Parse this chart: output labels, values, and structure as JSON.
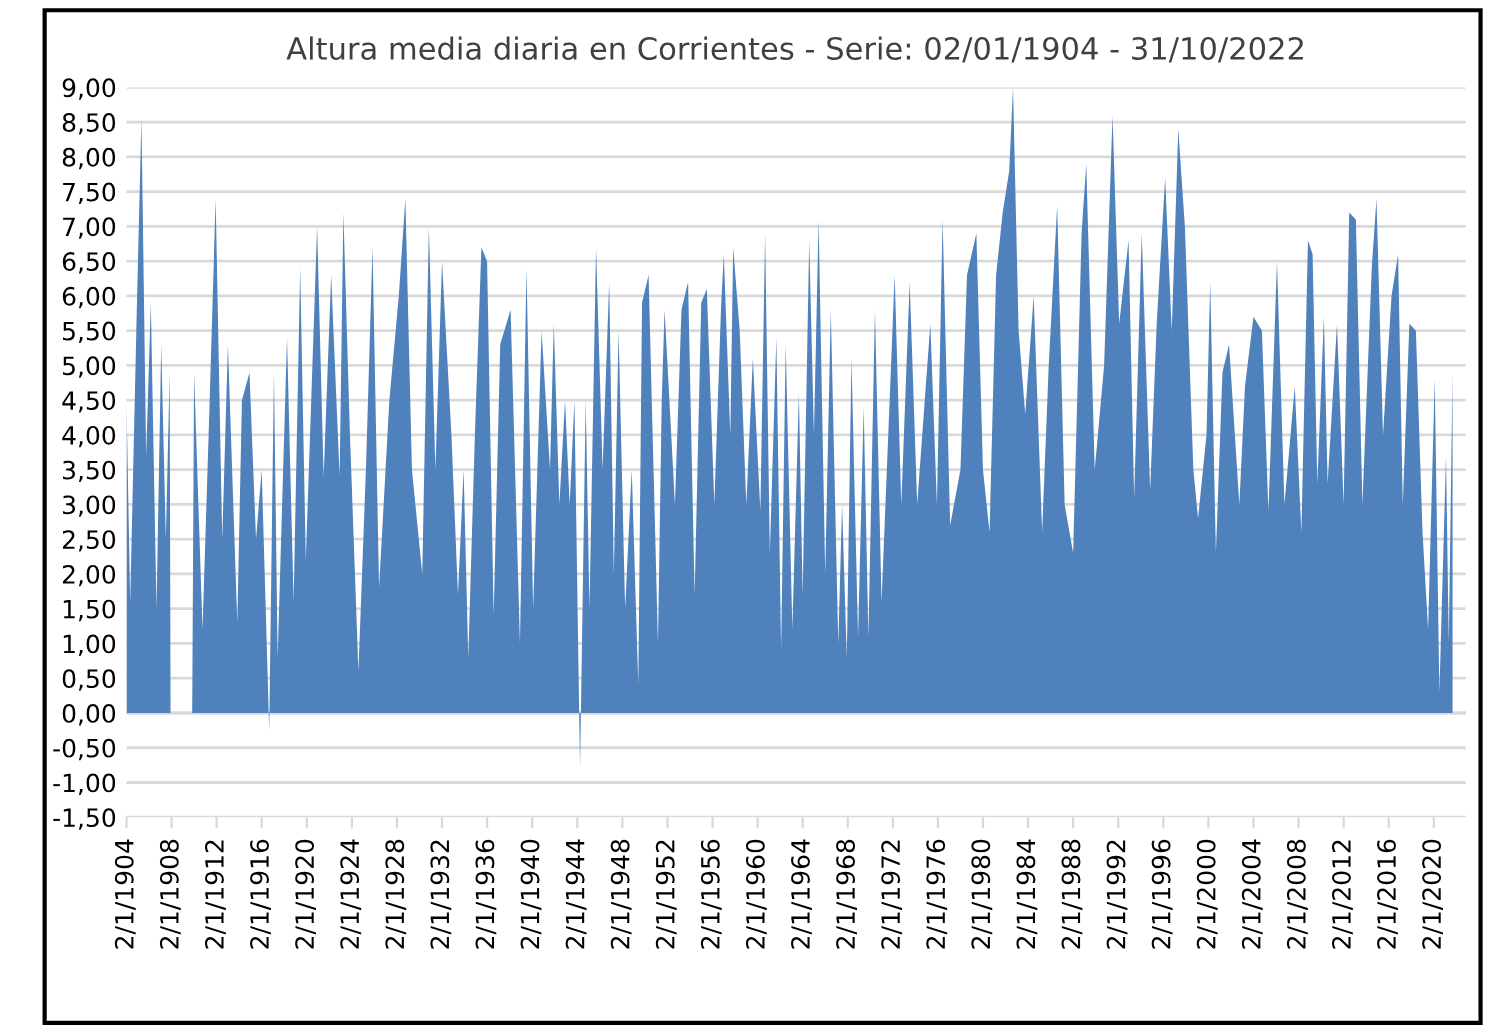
{
  "chart_data": {
    "type": "area",
    "title": "Altura media diaria en Corrientes - Serie: 02/01/1904 - 31/10/2022",
    "x": [
      "1904-01-02",
      "1904-05",
      "1904-12",
      "1905-05",
      "1905-10",
      "1906-03",
      "1906-09",
      "1907-02",
      "1907-07",
      "1907-11",
      "1907-12",
      "1909-11",
      "1910-01",
      "1910-10",
      "1911-05",
      "1911-12",
      "1912-07",
      "1913-01",
      "1913-11",
      "1914-04",
      "1914-12",
      "1915-07",
      "1916-01",
      "1916-09",
      "1917-02",
      "1917-06",
      "1918-04",
      "1918-11",
      "1919-06",
      "1919-12",
      "1920-12",
      "1921-07",
      "1922-03",
      "1922-12",
      "1923-04",
      "1923-11",
      "1924-08",
      "1925-04",
      "1925-11",
      "1926-06",
      "1927-05",
      "1928-03",
      "1928-10",
      "1929-05",
      "1930-04",
      "1930-11",
      "1931-06",
      "1932-01",
      "1932-11",
      "1933-06",
      "1933-12",
      "1934-05",
      "1934-12",
      "1935-07",
      "1936-01",
      "1936-08",
      "1937-03",
      "1938-02",
      "1938-12",
      "1939-07",
      "1940-02",
      "1940-11",
      "1941-08",
      "1941-12",
      "1942-06",
      "1942-12",
      "1943-05",
      "1943-10",
      "1944-04",
      "1944-10",
      "1945-02",
      "1945-09",
      "1946-04",
      "1946-11",
      "1947-04",
      "1947-09",
      "1948-04",
      "1948-11",
      "1949-06",
      "1949-10",
      "1950-05",
      "1951-03",
      "1951-07",
      "1951-10",
      "1952-09",
      "1953-04",
      "1953-11",
      "1954-06",
      "1955-01",
      "1955-07",
      "1956-03",
      "1956-10",
      "1957-01",
      "1957-08",
      "1957-11",
      "1958-06",
      "1959-01",
      "1959-08",
      "1960-04",
      "1960-09",
      "1961-02",
      "1961-09",
      "1962-02",
      "1962-07",
      "1963-02",
      "1963-09",
      "1964-01",
      "1964-08",
      "1965-01",
      "1965-06",
      "1966-01",
      "1966-07",
      "1967-03",
      "1967-07",
      "1967-12",
      "1968-05",
      "1968-12",
      "1969-06",
      "1969-11",
      "1970-06",
      "1971-01",
      "1972-03",
      "1972-10",
      "1973-07",
      "1974-03",
      "1975-05",
      "1975-12",
      "1976-06",
      "1977-02",
      "1978-01",
      "1978-08",
      "1979-06",
      "1980-01",
      "1980-08",
      "1981-03",
      "1981-10",
      "1982-05",
      "1982-09",
      "1983-03",
      "1983-10",
      "1984-07",
      "1985-04",
      "1985-11",
      "1986-08",
      "1987-04",
      "1988-01",
      "1988-10",
      "1989-03",
      "1989-12",
      "1990-10",
      "1991-07",
      "1992-02",
      "1992-12",
      "1993-06",
      "1994-02",
      "1994-11",
      "1995-06",
      "1996-03",
      "1996-10",
      "1997-05",
      "1997-12",
      "1998-09",
      "1999-02",
      "1999-11",
      "2000-03",
      "2000-09",
      "2001-04",
      "2001-11",
      "2002-10",
      "2003-04",
      "2004-01",
      "2004-10",
      "2005-05",
      "2006-02",
      "2006-10",
      "2007-09",
      "2008-04",
      "2008-11",
      "2009-04",
      "2009-09",
      "2010-04",
      "2010-08",
      "2011-06",
      "2012-01",
      "2012-07",
      "2013-02",
      "2013-09",
      "2014-07",
      "2014-12",
      "2015-07",
      "2016-04",
      "2016-11",
      "2017-04",
      "2017-11",
      "2018-06",
      "2019-01",
      "2019-07",
      "2020-02",
      "2020-07",
      "2021-02",
      "2021-05",
      "2021-09"
    ],
    "series": [
      {
        "color": "#4f81bd",
        "values": [
          4.5,
          1.6,
          5.8,
          8.55,
          3.7,
          5.9,
          1.5,
          5.3,
          2.5,
          4.9,
          0,
          0,
          4.9,
          1.2,
          4.2,
          7.4,
          2.5,
          5.3,
          1.3,
          4.5,
          4.9,
          2.5,
          3.5,
          -0.25,
          4.9,
          0.8,
          5.4,
          1.6,
          6.4,
          2.2,
          7.0,
          3.4,
          6.3,
          3.4,
          7.2,
          4.0,
          0.6,
          3.5,
          6.7,
          1.8,
          4.5,
          6.0,
          7.4,
          3.5,
          2.0,
          7.0,
          3.5,
          6.5,
          4.0,
          1.7,
          3.5,
          0.8,
          4.0,
          6.7,
          6.5,
          1.4,
          5.3,
          5.8,
          1.0,
          6.4,
          1.5,
          5.5,
          3.5,
          5.6,
          3.0,
          4.5,
          3.0,
          4.5,
          -0.8,
          4.5,
          1.5,
          6.7,
          3.5,
          6.2,
          2.0,
          5.5,
          1.5,
          3.5,
          0.4,
          5.9,
          6.3,
          1.0,
          4.5,
          5.8,
          3.0,
          5.8,
          6.2,
          1.7,
          5.9,
          6.1,
          3.0,
          5.8,
          6.6,
          4.0,
          6.7,
          5.5,
          3.0,
          5.1,
          2.9,
          6.9,
          2.3,
          5.4,
          0.9,
          5.3,
          1.2,
          4.6,
          1.7,
          6.8,
          4.0,
          7.1,
          2.0,
          5.8,
          1.0,
          3.0,
          0.8,
          5.1,
          1.1,
          4.4,
          1.1,
          5.8,
          1.6,
          6.3,
          3.0,
          6.2,
          3.0,
          5.6,
          3.0,
          7.1,
          2.7,
          3.5,
          6.3,
          6.9,
          3.5,
          2.6,
          6.3,
          7.2,
          7.8,
          9.0,
          5.5,
          4.3,
          6.0,
          2.6,
          5.0,
          7.3,
          3.0,
          2.3,
          6.9,
          7.9,
          3.5,
          5.0,
          8.6,
          5.6,
          6.8,
          3.1,
          6.9,
          3.2,
          5.6,
          7.7,
          5.5,
          8.4,
          7.0,
          3.5,
          2.8,
          4.0,
          6.2,
          2.3,
          4.9,
          5.3,
          3.0,
          4.7,
          5.7,
          5.5,
          2.9,
          6.5,
          3.0,
          4.7,
          2.6,
          6.8,
          6.6,
          3.3,
          5.7,
          3.3,
          5.6,
          3.0,
          7.2,
          7.1,
          3.0,
          6.4,
          7.4,
          4.0,
          6.0,
          6.6,
          3.0,
          5.6,
          5.5,
          2.6,
          1.2,
          4.8,
          0.3,
          3.7,
          1.0,
          4.9
        ]
      }
    ],
    "xlim": [
      "1904-01-02",
      "2022-10-31"
    ],
    "xticks": [
      {
        "value": "1904-01-02",
        "label": "2/1/1904"
      },
      {
        "value": "1908-01-02",
        "label": "2/1/1908"
      },
      {
        "value": "1912-01-02",
        "label": "2/1/1912"
      },
      {
        "value": "1916-01-02",
        "label": "2/1/1916"
      },
      {
        "value": "1920-01-02",
        "label": "2/1/1920"
      },
      {
        "value": "1924-01-02",
        "label": "2/1/1924"
      },
      {
        "value": "1928-01-02",
        "label": "2/1/1928"
      },
      {
        "value": "1932-01-02",
        "label": "2/1/1932"
      },
      {
        "value": "1936-01-02",
        "label": "2/1/1936"
      },
      {
        "value": "1940-01-02",
        "label": "2/1/1940"
      },
      {
        "value": "1944-01-02",
        "label": "2/1/1944"
      },
      {
        "value": "1948-01-02",
        "label": "2/1/1948"
      },
      {
        "value": "1952-01-02",
        "label": "2/1/1952"
      },
      {
        "value": "1956-01-02",
        "label": "2/1/1956"
      },
      {
        "value": "1960-01-02",
        "label": "2/1/1960"
      },
      {
        "value": "1964-01-02",
        "label": "2/1/1964"
      },
      {
        "value": "1968-01-02",
        "label": "2/1/1968"
      },
      {
        "value": "1972-01-02",
        "label": "2/1/1972"
      },
      {
        "value": "1976-01-02",
        "label": "2/1/1976"
      },
      {
        "value": "1980-01-02",
        "label": "2/1/1980"
      },
      {
        "value": "1984-01-02",
        "label": "2/1/1984"
      },
      {
        "value": "1988-01-02",
        "label": "2/1/1988"
      },
      {
        "value": "1992-01-02",
        "label": "2/1/1992"
      },
      {
        "value": "1996-01-02",
        "label": "2/1/1996"
      },
      {
        "value": "2000-01-02",
        "label": "2/1/2000"
      },
      {
        "value": "2004-01-02",
        "label": "2/1/2004"
      },
      {
        "value": "2008-01-02",
        "label": "2/1/2008"
      },
      {
        "value": "2012-01-02",
        "label": "2/1/2012"
      },
      {
        "value": "2016-01-02",
        "label": "2/1/2016"
      },
      {
        "value": "2020-01-02",
        "label": "2/1/2020"
      }
    ],
    "ylim": [
      -1.5,
      9.0
    ],
    "yticks": [
      {
        "value": -1.5,
        "label": "-1,50"
      },
      {
        "value": -1.0,
        "label": "-1,00"
      },
      {
        "value": -0.5,
        "label": "-0,50"
      },
      {
        "value": 0,
        "label": "0,00"
      },
      {
        "value": 0.5,
        "label": "0,50"
      },
      {
        "value": 1.0,
        "label": "1,00"
      },
      {
        "value": 1.5,
        "label": "1,50"
      },
      {
        "value": 2.0,
        "label": "2,00"
      },
      {
        "value": 2.5,
        "label": "2,50"
      },
      {
        "value": 3.0,
        "label": "3,00"
      },
      {
        "value": 3.5,
        "label": "3,50"
      },
      {
        "value": 4.0,
        "label": "4,00"
      },
      {
        "value": 4.5,
        "label": "4,50"
      },
      {
        "value": 5.0,
        "label": "5,00"
      },
      {
        "value": 5.5,
        "label": "5,50"
      },
      {
        "value": 6.0,
        "label": "6,00"
      },
      {
        "value": 6.5,
        "label": "6,50"
      },
      {
        "value": 7.0,
        "label": "7,00"
      },
      {
        "value": 7.5,
        "label": "7,50"
      },
      {
        "value": 8.0,
        "label": "8,00"
      },
      {
        "value": 8.5,
        "label": "8,50"
      },
      {
        "value": 9.0,
        "label": "9,00"
      }
    ],
    "grid": "y"
  }
}
